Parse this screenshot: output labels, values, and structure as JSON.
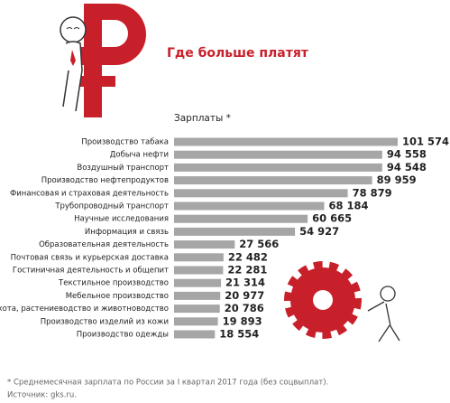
{
  "chart_data": {
    "type": "bar",
    "orientation": "horizontal",
    "title": "Где больше платят",
    "subtitle": "Зарплаты *",
    "categories": [
      "Производство табака",
      "Добыча нефти",
      "Воздушный транспорт",
      "Производство нефтепродуктов",
      "Финансовая и страховая деятельность",
      "Трубопроводный транспорт",
      "Научные исследования",
      "Информация и связь",
      "Образовательная деятельность",
      "Почтовая связь и курьерская доставка",
      "Гостиничная деятельность и общепит",
      "Текстильное производство",
      "Мебельное производство",
      "Охота, растениеводство и животноводство",
      "Производство изделий из кожи",
      "Производство одежды"
    ],
    "values": [
      101574,
      94558,
      94548,
      89959,
      78879,
      68184,
      60665,
      54927,
      27566,
      22482,
      22281,
      21314,
      20977,
      20786,
      19893,
      18554
    ],
    "value_labels": [
      "101 574",
      "94 558",
      "94 548",
      "89 959",
      "78 879",
      "68 184",
      "60 665",
      "54 927",
      "27 566",
      "22 482",
      "22 281",
      "21 314",
      "20 977",
      "20 786",
      "19 893",
      "18 554"
    ],
    "color": "#a6a6a6",
    "footnote": "* Среднемесячная зарплата по России за I квартал 2017 года (без соцвыплат).",
    "source": "Источник: gks.ru."
  }
}
